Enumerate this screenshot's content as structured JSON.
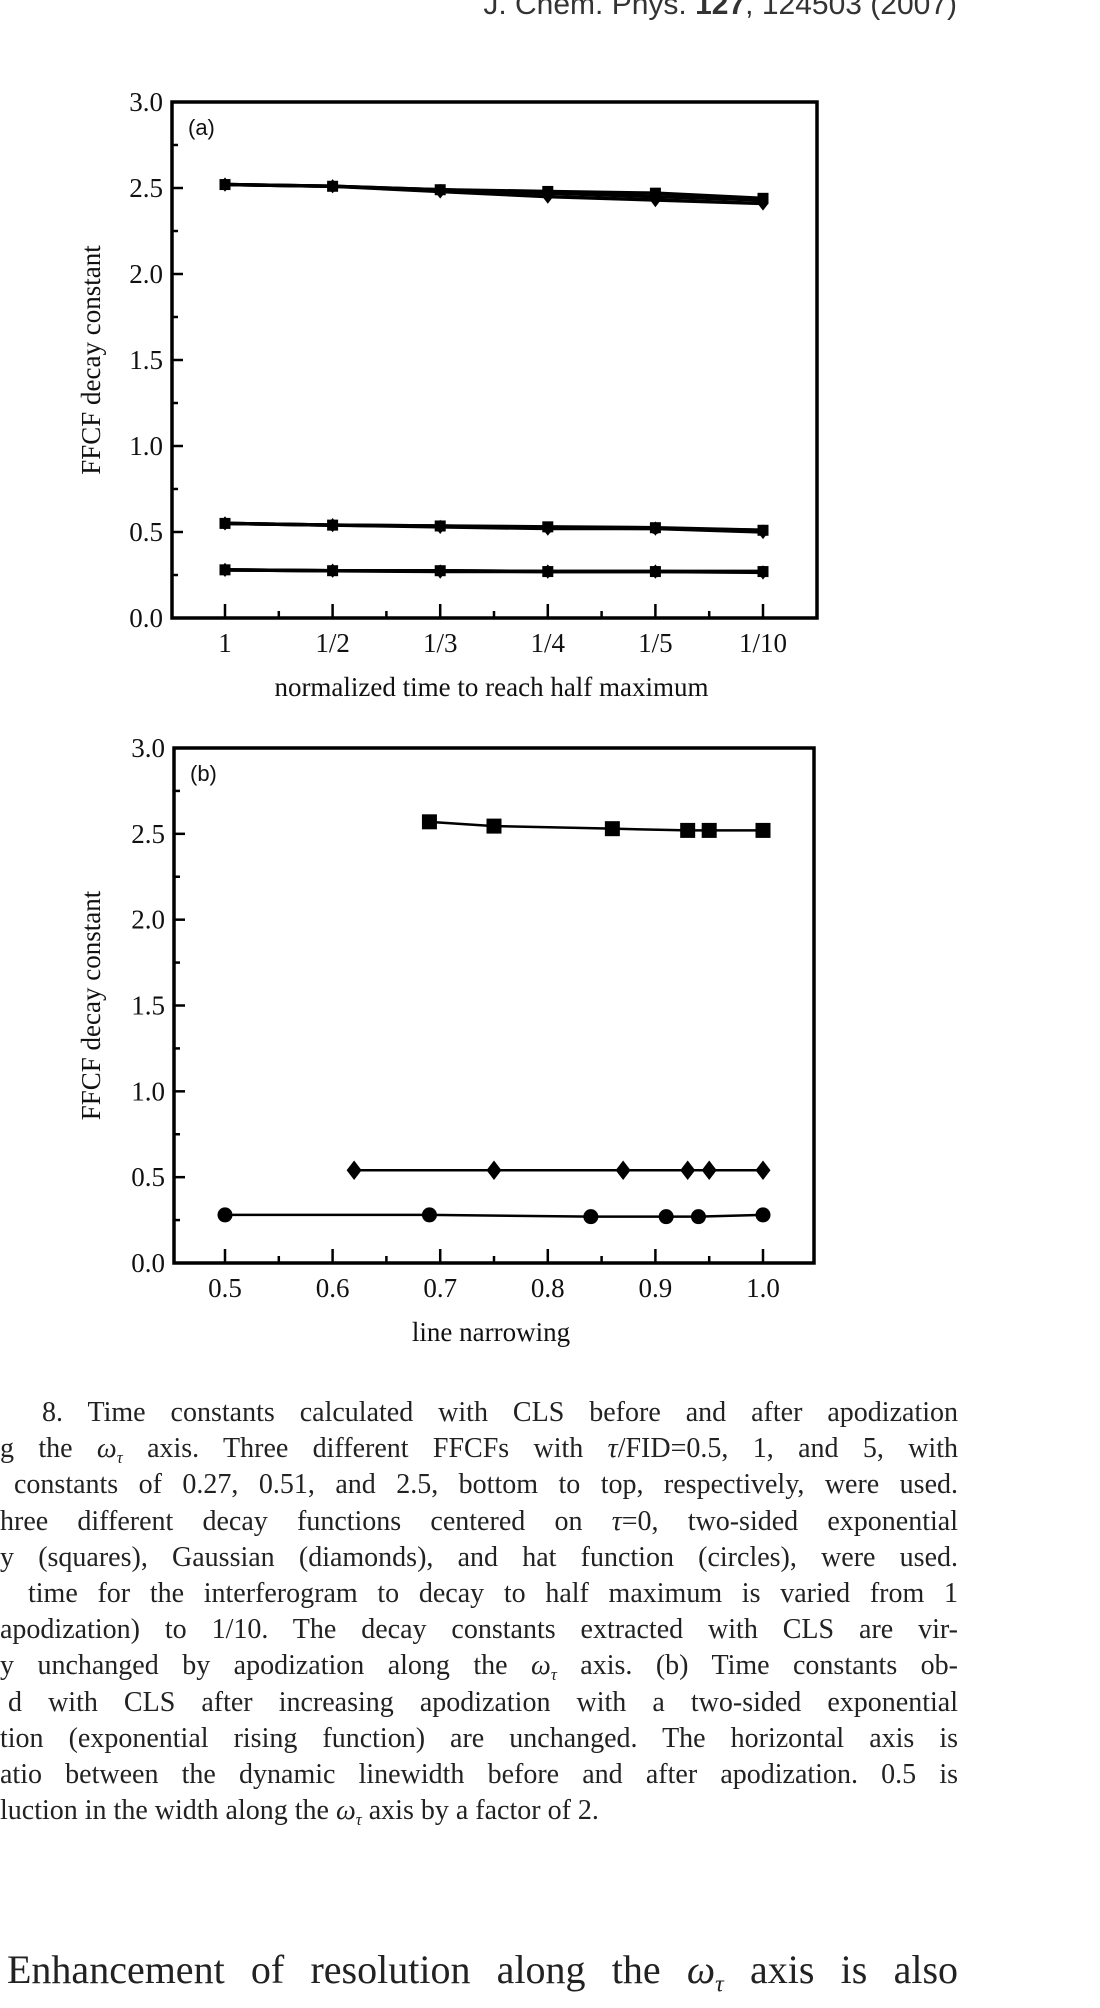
{
  "header": {
    "journal": "J. Chem. Phys.",
    "volume": "127",
    "rest": ", 124503 (2007)"
  },
  "chart_data": [
    {
      "type": "line",
      "panel_label": "(a)",
      "xlabel": "normalized time to reach half maximum",
      "ylabel": "FFCF decay constant",
      "categories": [
        "1",
        "1/2",
        "1/3",
        "1/4",
        "1/5",
        "1/10"
      ],
      "ylim": [
        0,
        3.0
      ],
      "yticks": [
        "0.0",
        "0.5",
        "1.0",
        "1.5",
        "2.0",
        "2.5",
        "3.0"
      ],
      "series": [
        {
          "name": "two-sided exponential (squares), top",
          "marker": "square",
          "values": [
            2.52,
            2.51,
            2.49,
            2.48,
            2.47,
            2.44
          ]
        },
        {
          "name": "Gaussian (diamonds), top",
          "marker": "diamond",
          "values": [
            2.52,
            2.51,
            2.48,
            2.45,
            2.43,
            2.41
          ]
        },
        {
          "name": "hat function (circles), top",
          "marker": "circle",
          "values": [
            2.52,
            2.51,
            2.49,
            2.47,
            2.45,
            2.43
          ]
        },
        {
          "name": "two-sided exponential (squares), middle",
          "marker": "square",
          "values": [
            0.55,
            0.54,
            0.535,
            0.53,
            0.525,
            0.51
          ]
        },
        {
          "name": "Gaussian (diamonds), middle",
          "marker": "diamond",
          "values": [
            0.55,
            0.54,
            0.53,
            0.52,
            0.52,
            0.5
          ]
        },
        {
          "name": "hat function (circles), middle",
          "marker": "circle",
          "values": [
            0.55,
            0.54,
            0.535,
            0.525,
            0.52,
            0.51
          ]
        },
        {
          "name": "two-sided exponential (squares), bottom",
          "marker": "square",
          "values": [
            0.28,
            0.275,
            0.275,
            0.27,
            0.27,
            0.27
          ]
        },
        {
          "name": "Gaussian (diamonds), bottom",
          "marker": "diamond",
          "values": [
            0.28,
            0.275,
            0.27,
            0.27,
            0.27,
            0.265
          ]
        },
        {
          "name": "hat function (circles), bottom",
          "marker": "circle",
          "values": [
            0.28,
            0.275,
            0.275,
            0.27,
            0.27,
            0.27
          ]
        }
      ]
    },
    {
      "type": "line",
      "panel_label": "(b)",
      "xlabel": "line narrowing",
      "ylabel": "FFCF decay constant",
      "xlim": [
        0.45,
        1.05
      ],
      "xticks": [
        "0.5",
        "0.6",
        "0.7",
        "0.8",
        "0.9",
        "1.0"
      ],
      "ylim": [
        0,
        3.0
      ],
      "yticks": [
        "0.0",
        "0.5",
        "1.0",
        "1.5",
        "2.0",
        "2.5",
        "3.0"
      ],
      "series": [
        {
          "name": "squares",
          "marker": "square",
          "x": [
            0.69,
            0.75,
            0.86,
            0.93,
            0.95,
            1.0
          ],
          "values": [
            2.57,
            2.545,
            2.53,
            2.52,
            2.52,
            2.52
          ]
        },
        {
          "name": "diamonds",
          "marker": "diamond",
          "x": [
            0.62,
            0.75,
            0.87,
            0.93,
            0.95,
            1.0
          ],
          "values": [
            0.54,
            0.54,
            0.54,
            0.54,
            0.54,
            0.54
          ]
        },
        {
          "name": "circles",
          "marker": "circle",
          "x": [
            0.5,
            0.69,
            0.84,
            0.91,
            0.94,
            1.0
          ],
          "values": [
            0.28,
            0.28,
            0.27,
            0.27,
            0.27,
            0.28
          ]
        }
      ]
    }
  ],
  "caption": {
    "lines": [
      "8. Time constants calculated with CLS before and after apodization",
      "g the ω_τ axis. Three different FFCFs with τ/FID=0.5, 1, and 5, with",
      "constants of 0.27, 0.51, and 2.5, bottom to top, respectively, were used.",
      "hree different decay functions centered on τ=0, two-sided exponential",
      "y (squares), Gaussian (diamonds), and hat function (circles), were used.",
      "time for the interferogram to decay to half maximum is varied from 1",
      "apodization) to 1/10. The decay constants extracted with CLS are vir-",
      "y unchanged by apodization along the ω_τ axis. (b) Time constants ob-",
      "d with CLS after increasing apodization with a two-sided exponential",
      "tion (exponential rising function) are unchanged. The horizontal axis is",
      "atio between the dynamic linewidth before and after apodization. 0.5 is",
      "luction in the width along the ω_τ axis by a factor of 2."
    ]
  },
  "body": {
    "text": "Enhancement of resolution along the ω_τ axis is also"
  }
}
